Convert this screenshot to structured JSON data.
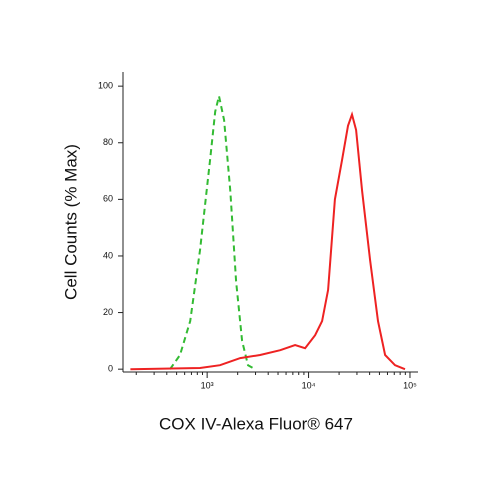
{
  "chart_data": {
    "type": "line",
    "x_label": "COX IV-Alexa Fluor® 647",
    "y_label": "Cell Counts (% Max)",
    "xscale": "log",
    "xlim": [
      148,
      120000
    ],
    "ylim": [
      -1,
      105
    ],
    "xticks": [
      {
        "value": 1000,
        "label": "10³"
      },
      {
        "value": 10000,
        "label": "10⁴"
      },
      {
        "value": 100000,
        "label": "10⁵"
      }
    ],
    "xticks_minor": [
      200,
      300,
      400,
      500,
      600,
      700,
      800,
      900,
      2000,
      3000,
      4000,
      5000,
      6000,
      7000,
      8000,
      9000,
      20000,
      30000,
      40000,
      50000,
      60000,
      70000,
      80000,
      90000
    ],
    "yticks": [
      0,
      20,
      40,
      60,
      80,
      100
    ],
    "series": [
      {
        "color": "#33bb33",
        "dash": true,
        "x": [
          430,
          540,
          680,
          850,
          1070,
          1200,
          1310,
          1470,
          1690,
          1930,
          2210,
          2530,
          2970
        ],
        "values": [
          0,
          5,
          17,
          42,
          74,
          91,
          96.5,
          88,
          63,
          31,
          10,
          1.4,
          0
        ]
      },
      {
        "color": "#ee2222",
        "dash": false,
        "x": [
          175,
          850,
          1340,
          2120,
          3330,
          5250,
          7360,
          9250,
          11600,
          13600,
          15600,
          18200,
          21400,
          24500,
          26800,
          29400,
          33700,
          40400,
          48400,
          56800,
          71200,
          89300
        ],
        "values": [
          0,
          0.4,
          1.4,
          3.9,
          5,
          6.7,
          8.5,
          7.4,
          12,
          17,
          28,
          60,
          74,
          86,
          90,
          84.5,
          63,
          38.5,
          17,
          5,
          1.4,
          0
        ]
      }
    ]
  }
}
